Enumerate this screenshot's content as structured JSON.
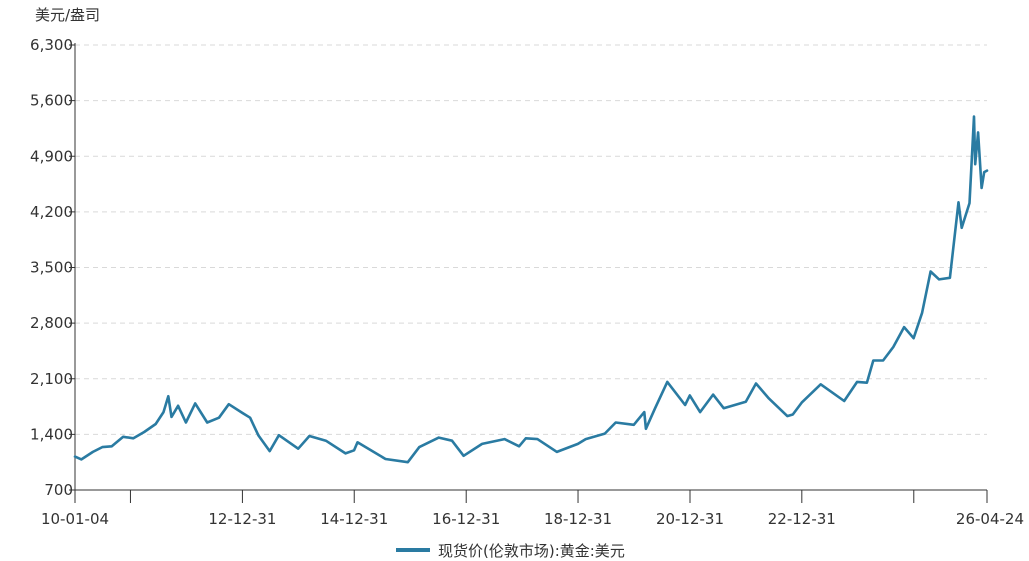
{
  "chart_data": {
    "type": "line",
    "unit": "美元/盎司",
    "ylim": [
      700,
      6300
    ],
    "yticks": [
      700,
      1400,
      2100,
      2800,
      3500,
      4200,
      4900,
      5600,
      6300
    ],
    "ytick_labels": [
      "700",
      "1,400",
      "2,100",
      "2,800",
      "3,500",
      "4,200",
      "4,900",
      "5,600",
      "6,300"
    ],
    "xlim": [
      "2010-01-04",
      "2026-04-24"
    ],
    "xtick_labels": [
      "10-01-04",
      "12-12-31",
      "14-12-31",
      "16-12-31",
      "18-12-31",
      "20-12-31",
      "22-12-31",
      "26-04-24"
    ],
    "grid": true,
    "legend_position": "bottom-center",
    "series": [
      {
        "name": "现货价(伦敦市场):黄金:美元",
        "color": "#2a7ba2",
        "x": [
          "2010-01-04",
          "2010-02-15",
          "2010-05-01",
          "2010-07-01",
          "2010-09-01",
          "2010-11-15",
          "2011-01-20",
          "2011-04-01",
          "2011-06-15",
          "2011-08-05",
          "2011-09-05",
          "2011-09-26",
          "2011-11-08",
          "2011-12-29",
          "2012-02-28",
          "2012-05-16",
          "2012-08-01",
          "2012-10-04",
          "2012-12-31",
          "2013-02-20",
          "2013-04-15",
          "2013-06-28",
          "2013-08-27",
          "2013-12-31",
          "2014-03-14",
          "2014-06-30",
          "2014-11-05",
          "2014-12-31",
          "2015-01-22",
          "2015-07-24",
          "2015-12-17",
          "2016-03-01",
          "2016-07-06",
          "2016-09-30",
          "2016-12-15",
          "2017-04-15",
          "2017-09-08",
          "2017-12-12",
          "2018-01-25",
          "2018-04-11",
          "2018-08-16",
          "2018-12-31",
          "2019-02-20",
          "2019-06-25",
          "2019-09-04",
          "2019-12-31",
          "2020-03-09",
          "2020-03-19",
          "2020-05-18",
          "2020-08-06",
          "2020-11-30",
          "2020-12-31",
          "2021-03-08",
          "2021-06-01",
          "2021-08-09",
          "2021-12-31",
          "2022-03-08",
          "2022-06-01",
          "2022-09-28",
          "2022-11-03",
          "2022-12-31",
          "2023-05-04",
          "2023-10-05",
          "2023-12-28",
          "2024-03-01",
          "2024-04-12",
          "2024-06-15",
          "2024-08-20",
          "2024-10-30",
          "2024-12-31",
          "2025-02-24",
          "2025-04-21",
          "2025-06-15",
          "2025-08-25",
          "2025-10-20",
          "2025-11-10",
          "2025-12-31",
          "2026-01-29",
          "2026-02-06",
          "2026-02-25",
          "2026-03-20",
          "2026-04-06",
          "2026-04-24"
        ],
        "y": [
          1120,
          1085,
          1180,
          1240,
          1250,
          1370,
          1350,
          1430,
          1530,
          1680,
          1880,
          1620,
          1760,
          1550,
          1790,
          1550,
          1610,
          1780,
          1670,
          1610,
          1390,
          1190,
          1390,
          1220,
          1380,
          1320,
          1160,
          1200,
          1300,
          1090,
          1050,
          1240,
          1360,
          1320,
          1130,
          1280,
          1340,
          1250,
          1350,
          1340,
          1180,
          1280,
          1340,
          1410,
          1550,
          1520,
          1680,
          1470,
          1730,
          2060,
          1770,
          1890,
          1680,
          1900,
          1730,
          1810,
          2040,
          1850,
          1630,
          1650,
          1800,
          2030,
          1820,
          2060,
          2050,
          2330,
          2330,
          2500,
          2750,
          2610,
          2930,
          3450,
          3350,
          3370,
          4320,
          4000,
          4310,
          5400,
          4800,
          5200,
          4500,
          4700,
          4720
        ]
      }
    ]
  }
}
